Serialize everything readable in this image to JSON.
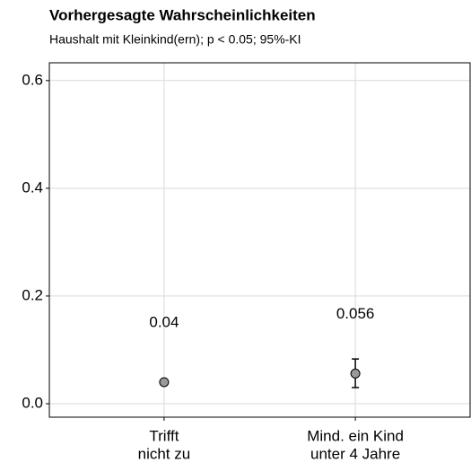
{
  "chart_data": {
    "type": "pointrange",
    "title": "Vorhergesagte Wahrscheinlichkeiten",
    "subtitle": "Haushalt mit Kleinkind(ern); p < 0.05; 95%-KI",
    "categories": [
      [
        "Trifft",
        "nicht zu"
      ],
      [
        "Mind. ein Kind",
        "unter 4 Jahre"
      ]
    ],
    "values": [
      0.04,
      0.056
    ],
    "ci_low": [
      0.037,
      0.03
    ],
    "ci_high": [
      0.043,
      0.083
    ],
    "color": "#999999",
    "ylim": [
      -0.025,
      0.633
    ],
    "yticks": [
      {
        "value": 0,
        "label": "0.0"
      },
      {
        "value": 0.2,
        "label": "0.2"
      },
      {
        "value": 0.4,
        "label": "0.4"
      },
      {
        "value": 0.6,
        "label": "0.6"
      }
    ],
    "grid": true
  }
}
